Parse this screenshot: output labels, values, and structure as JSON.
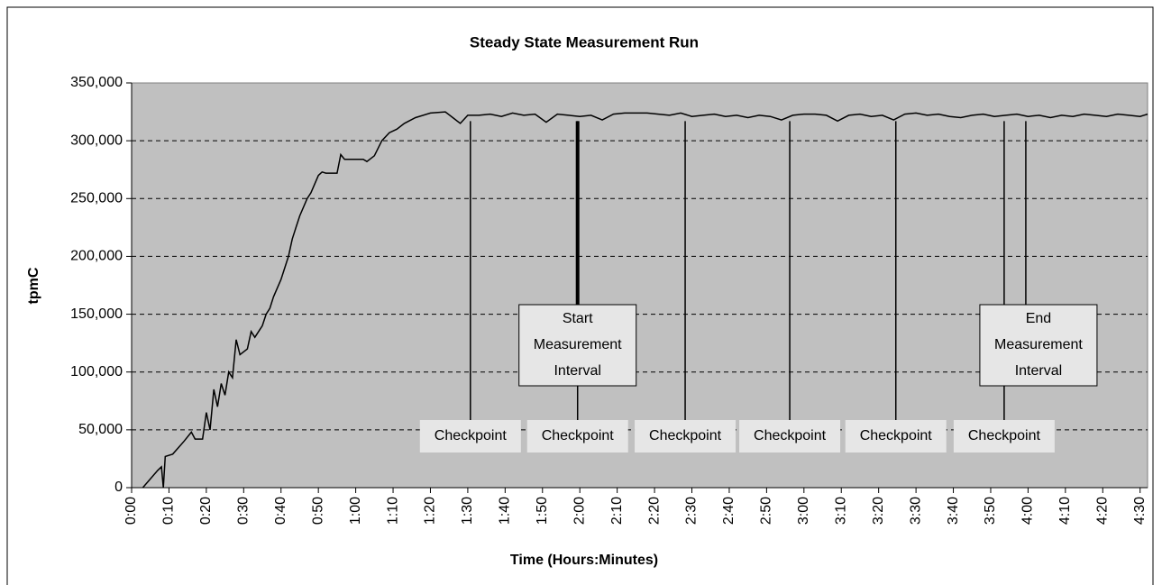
{
  "chart_data": {
    "type": "line",
    "title": "Steady State Measurement Run",
    "x_label": "Time (Hours:Minutes)",
    "y_label": "tpmC",
    "color": "#000000",
    "grid": true,
    "x": [
      3,
      7,
      8,
      8.5,
      9,
      11,
      14,
      16,
      17,
      19,
      20,
      21,
      22,
      23,
      24,
      25,
      26,
      27,
      28,
      29,
      31,
      32,
      33,
      35,
      36,
      37,
      38,
      40,
      42,
      43,
      44,
      45,
      47,
      48,
      50,
      51,
      52,
      55,
      56,
      57,
      62,
      63,
      65,
      67,
      69,
      71,
      73,
      76,
      80,
      84,
      86,
      88,
      90,
      93,
      96,
      99,
      102,
      105,
      108,
      111,
      114,
      117,
      120,
      123,
      126,
      129,
      132,
      135,
      138,
      141,
      144,
      147,
      150,
      153,
      156,
      159,
      162,
      165,
      168,
      171,
      174,
      177,
      180,
      183,
      186,
      189,
      192,
      195,
      198,
      201,
      204,
      207,
      210,
      213,
      216,
      219,
      222,
      225,
      228,
      231,
      234,
      237,
      240,
      243,
      246,
      249,
      252,
      255,
      258,
      261,
      264,
      267,
      270,
      272
    ],
    "values": [
      0,
      15000,
      18000,
      0,
      27000,
      29000,
      40000,
      48000,
      42000,
      42000,
      65000,
      50000,
      85000,
      70000,
      90000,
      80000,
      100000,
      95000,
      128000,
      115000,
      120000,
      135000,
      130000,
      140000,
      150000,
      155000,
      165000,
      180000,
      200000,
      215000,
      225000,
      235000,
      250000,
      255000,
      270000,
      273000,
      272000,
      272000,
      288000,
      284000,
      284000,
      282000,
      287000,
      300000,
      307000,
      310000,
      315000,
      320000,
      324000,
      325000,
      320000,
      315000,
      322000,
      322000,
      323000,
      321000,
      324000,
      322000,
      323000,
      316000,
      323000,
      322000,
      321000,
      322000,
      318000,
      323000,
      324000,
      324000,
      324000,
      323000,
      322000,
      324000,
      321000,
      322000,
      323000,
      321000,
      322000,
      320000,
      322000,
      321000,
      318000,
      322000,
      323000,
      323000,
      322000,
      317000,
      322000,
      323000,
      321000,
      322000,
      318000,
      323000,
      324000,
      322000,
      323000,
      321000,
      320000,
      322000,
      323000,
      321000,
      322000,
      323000,
      321000,
      322000,
      320000,
      322000,
      321000,
      323000,
      322000,
      321000,
      323000,
      322000,
      321000,
      323000
    ],
    "xlim": [
      0,
      272
    ],
    "ylim": [
      0,
      350000
    ],
    "xticks": [
      {
        "value": 0,
        "label": "0:00"
      },
      {
        "value": 10,
        "label": "0:10"
      },
      {
        "value": 20,
        "label": "0:20"
      },
      {
        "value": 30,
        "label": "0:30"
      },
      {
        "value": 40,
        "label": "0:40"
      },
      {
        "value": 50,
        "label": "0:50"
      },
      {
        "value": 60,
        "label": "1:00"
      },
      {
        "value": 70,
        "label": "1:10"
      },
      {
        "value": 80,
        "label": "1:20"
      },
      {
        "value": 90,
        "label": "1:30"
      },
      {
        "value": 100,
        "label": "1:40"
      },
      {
        "value": 110,
        "label": "1:50"
      },
      {
        "value": 120,
        "label": "2:00"
      },
      {
        "value": 130,
        "label": "2:10"
      },
      {
        "value": 140,
        "label": "2:20"
      },
      {
        "value": 150,
        "label": "2:30"
      },
      {
        "value": 160,
        "label": "2:40"
      },
      {
        "value": 170,
        "label": "2:50"
      },
      {
        "value": 180,
        "label": "3:00"
      },
      {
        "value": 190,
        "label": "3:10"
      },
      {
        "value": 200,
        "label": "3:20"
      },
      {
        "value": 210,
        "label": "3:30"
      },
      {
        "value": 220,
        "label": "3:40"
      },
      {
        "value": 230,
        "label": "3:50"
      },
      {
        "value": 240,
        "label": "4:00"
      },
      {
        "value": 250,
        "label": "4:10"
      },
      {
        "value": 260,
        "label": "4:20"
      },
      {
        "value": 270,
        "label": "4:30"
      }
    ],
    "yticks": [
      0,
      {
        "value": 50000,
        "label": "50,000"
      },
      {
        "value": 100000,
        "label": "100,000"
      },
      {
        "value": 150000,
        "label": "150,000"
      },
      {
        "value": 200000,
        "label": "200,000"
      },
      {
        "value": 250000,
        "label": "250,000"
      },
      {
        "value": 300000,
        "label": "300,000"
      },
      {
        "value": 350000,
        "label": "350,000"
      }
    ],
    "checkpoints": [
      {
        "text": "Checkpoint",
        "x": 90.7
      },
      {
        "text": "Checkpoint",
        "x": 119.4
      },
      {
        "text": "Checkpoint",
        "x": 148.2
      },
      {
        "text": "Checkpoint",
        "x": 176.2
      },
      {
        "text": "Checkpoint",
        "x": 204.6
      },
      {
        "text": "Checkpoint",
        "x": 233.6
      }
    ],
    "intervals": [
      {
        "lines": [
          "Start",
          "Measurement",
          "Interval"
        ],
        "x": 119.4
      },
      {
        "lines": [
          "End",
          "Measurement",
          "Interval"
        ],
        "x": 239.4
      }
    ]
  }
}
